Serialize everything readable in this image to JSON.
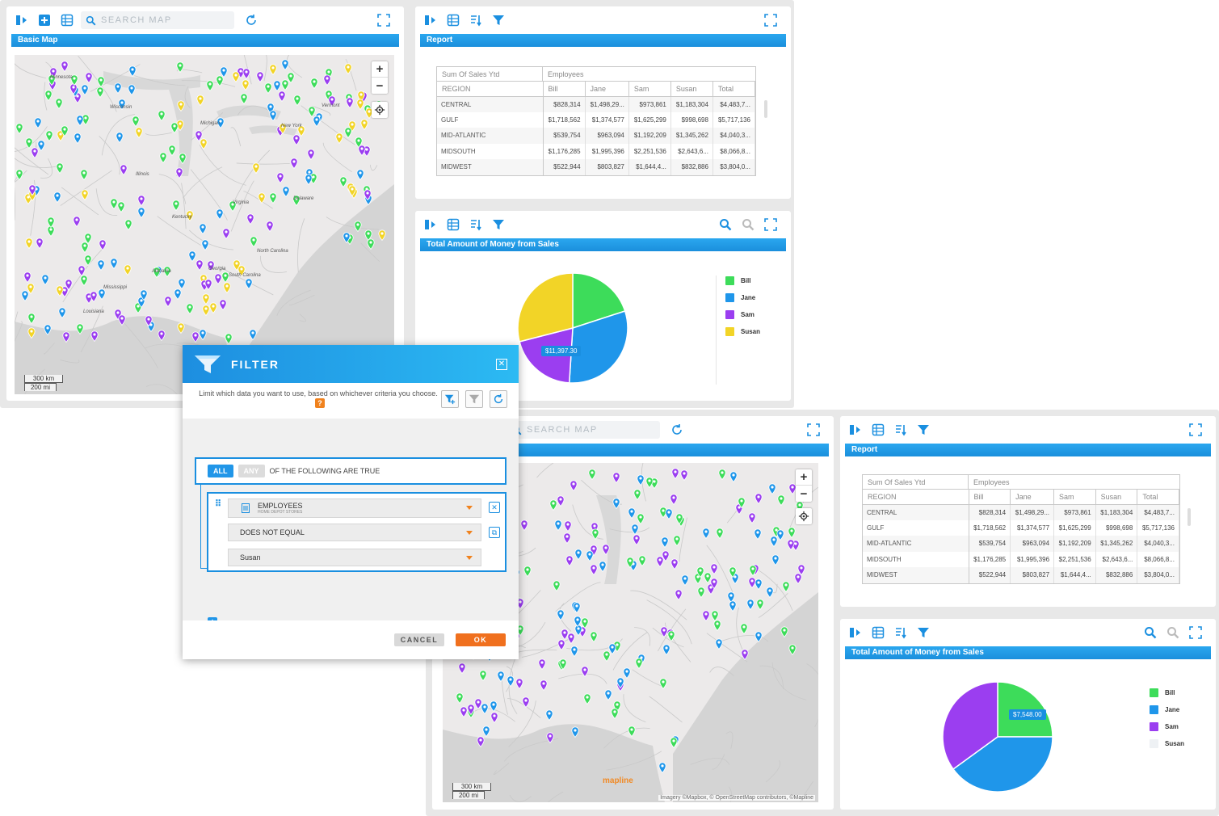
{
  "top_screen": {
    "map_panel": {
      "search_placeholder": "SEARCH MAP",
      "title": "Basic Map",
      "scale_km": "300 km",
      "scale_mi": "200 mi",
      "regions": [
        "Minnesota",
        "Wisconsin",
        "Michigan",
        "Illinois",
        "Kentucky",
        "Virginia",
        "North Carolina",
        "Georgia",
        "Alabama",
        "Mississippi",
        "Louisiana",
        "Vermont",
        "New York",
        "Delaware",
        "South Carolina"
      ]
    },
    "report_panel": {
      "title": "Report",
      "measure_label": "Sum Of Sales Ytd",
      "group_label": "Employees",
      "row_header": "REGION",
      "columns": [
        "Bill",
        "Jane",
        "Sam",
        "Susan",
        "Total"
      ],
      "rows": [
        [
          "CENTRAL",
          "$828,314",
          "$1,498,29...",
          "$973,861",
          "$1,183,304",
          "$4,483,7..."
        ],
        [
          "GULF",
          "$1,718,562",
          "$1,374,577",
          "$1,625,299",
          "$998,698",
          "$5,717,136"
        ],
        [
          "MID-ATLANTIC",
          "$539,754",
          "$963,094",
          "$1,192,209",
          "$1,345,262",
          "$4,040,3..."
        ],
        [
          "MIDSOUTH",
          "$1,176,285",
          "$1,995,396",
          "$2,251,536",
          "$2,643,6...",
          "$8,066,8..."
        ],
        [
          "MIDWEST",
          "$522,944",
          "$803,827",
          "$1,644,4...",
          "$832,886",
          "$3,804,0..."
        ]
      ]
    },
    "chart_panel": {
      "title": "Total Amount of Money from Sales",
      "tooltip": "$11,397.30"
    }
  },
  "bottom_screen": {
    "map_panel": {
      "search_placeholder": "SEARCH MAP",
      "scale_km": "300 km",
      "scale_mi": "200 mi",
      "logo": "mapline",
      "attribution": "Imagery ©Mapbox, © OpenStreetMap contributors, ©Mapline"
    },
    "report_panel": {
      "title": "Report",
      "measure_label": "Sum Of Sales Ytd",
      "group_label": "Employees",
      "row_header": "REGION",
      "columns": [
        "Bill",
        "Jane",
        "Sam",
        "Susan",
        "Total"
      ],
      "rows": [
        [
          "CENTRAL",
          "$828,314",
          "$1,498,29...",
          "$973,861",
          "$1,183,304",
          "$4,483,7..."
        ],
        [
          "GULF",
          "$1,718,562",
          "$1,374,577",
          "$1,625,299",
          "$998,698",
          "$5,717,136"
        ],
        [
          "MID-ATLANTIC",
          "$539,754",
          "$963,094",
          "$1,192,209",
          "$1,345,262",
          "$4,040,3..."
        ],
        [
          "MIDSOUTH",
          "$1,176,285",
          "$1,995,396",
          "$2,251,536",
          "$2,643,6...",
          "$8,066,8..."
        ],
        [
          "MIDWEST",
          "$522,944",
          "$803,827",
          "$1,644,4...",
          "$832,886",
          "$3,804,0..."
        ]
      ]
    },
    "chart_panel": {
      "title": "Total Amount of Money from Sales",
      "tooltip": "$7,548.00"
    }
  },
  "filter_dialog": {
    "title": "FILTER",
    "description": "Limit which data you want to use, based on whichever criteria you choose.",
    "help": "?",
    "match_all": "ALL",
    "match_any": "ANY",
    "match_suffix": "OF THE FOLLOWING ARE TRUE",
    "condition": {
      "field": "EMPLOYEES",
      "field_source": "HOME DEPOT STORES",
      "operator": "DOES NOT EQUAL",
      "value": "Susan"
    },
    "cancel_label": "CANCEL",
    "ok_label": "OK"
  },
  "colors": {
    "bill": "#3ddc5a",
    "jane": "#1f96ea",
    "sam": "#9b3ef0",
    "susan": "#f2d427",
    "accent": "#1a8fe0",
    "ok": "#f0701e"
  },
  "chart_data": [
    {
      "type": "pie",
      "title": "Total Amount of Money from Sales",
      "legend": [
        "Bill",
        "Jane",
        "Sam",
        "Susan"
      ],
      "values": [
        20,
        31,
        20,
        29
      ],
      "value_label": "$11,397.30",
      "legend_position": "right"
    },
    {
      "type": "pie",
      "title": "Total Amount of Money from Sales",
      "legend": [
        "Bill",
        "Jane",
        "Sam",
        "Susan"
      ],
      "values": [
        25,
        40,
        35,
        0
      ],
      "value_label": "$7,548.00",
      "legend_position": "right"
    }
  ]
}
